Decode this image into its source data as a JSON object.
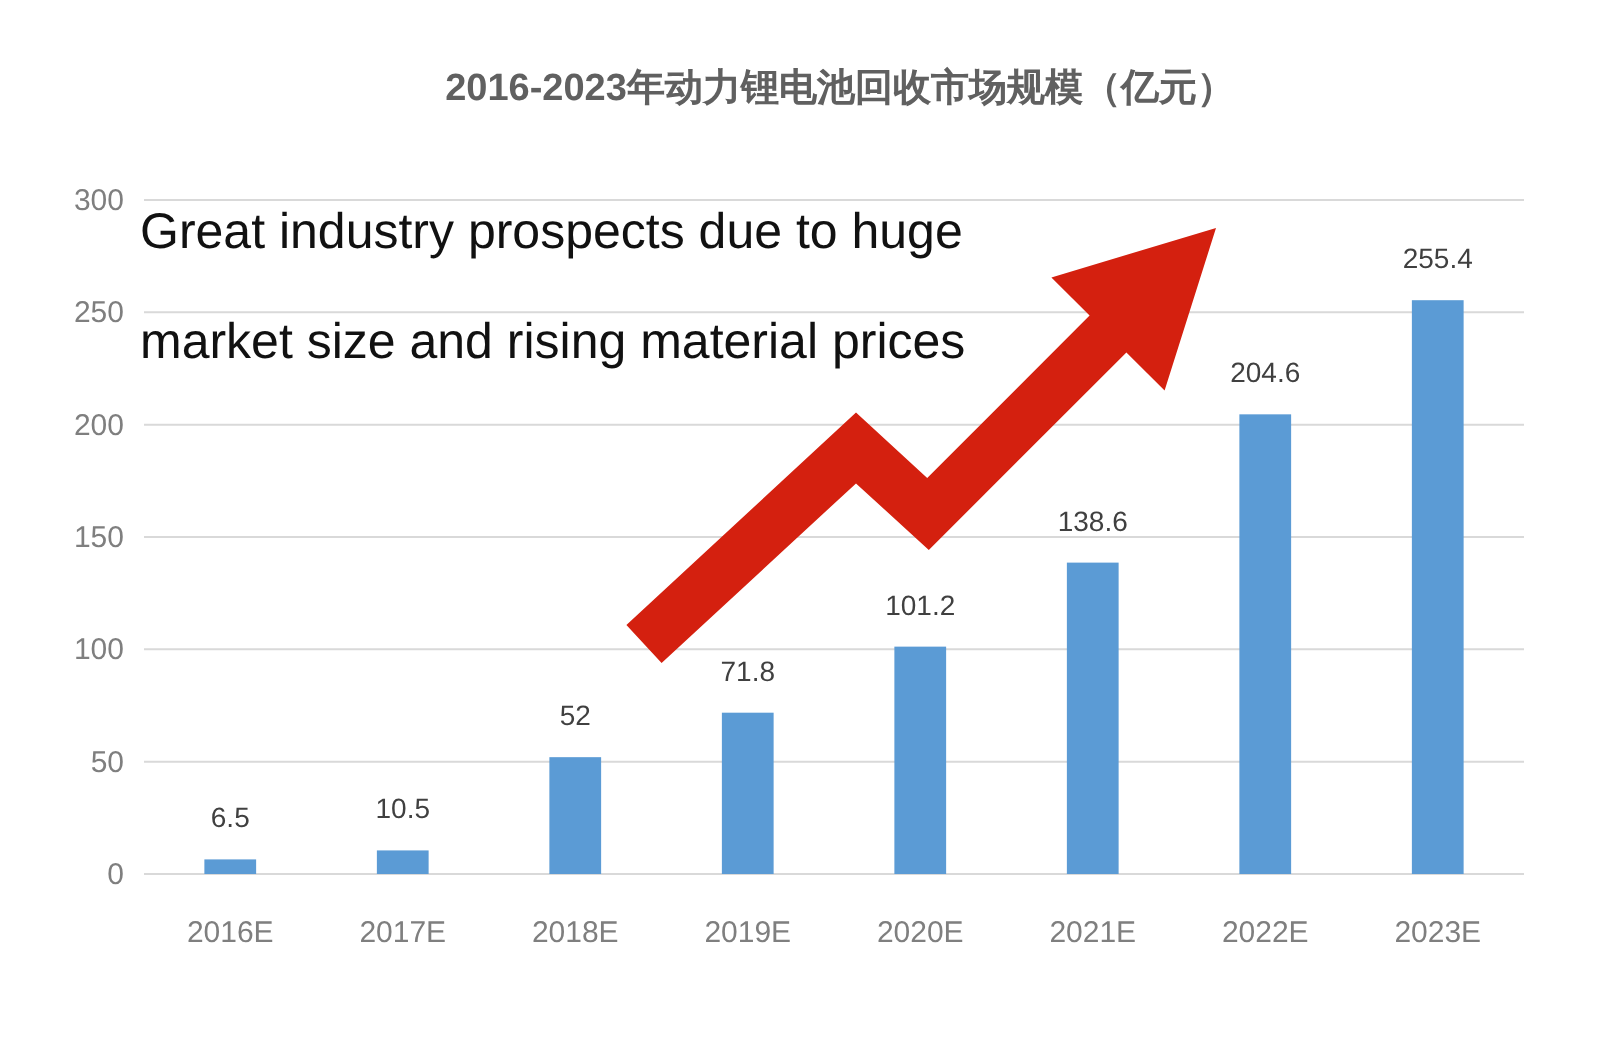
{
  "chart_data": {
    "type": "bar",
    "title": "2016-2023年动力锂电池回收市场规模（亿元）",
    "categories": [
      "2016E",
      "2017E",
      "2018E",
      "2019E",
      "2020E",
      "2021E",
      "2022E",
      "2023E"
    ],
    "values": [
      6.5,
      10.5,
      52,
      71.8,
      101.2,
      138.6,
      204.6,
      255.4
    ],
    "color": "#5b9bd5",
    "ylim": [
      0,
      300
    ],
    "yticks": [
      0,
      50,
      100,
      150,
      200,
      250,
      300
    ],
    "grid": "y",
    "data_labels": true,
    "annotations": [
      "Great industry prospects due to huge market size and rising material prices"
    ]
  }
}
